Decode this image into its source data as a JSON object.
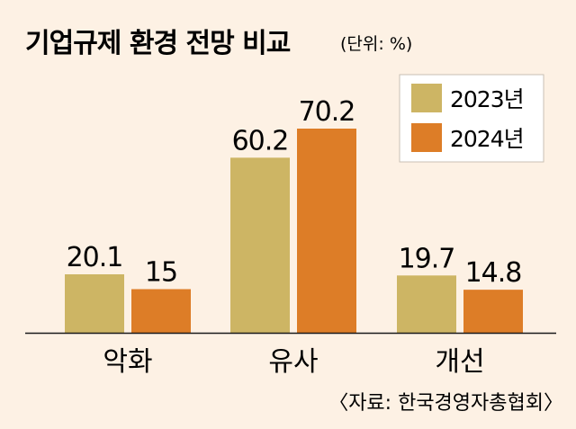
{
  "colors": {
    "background": "#fdf1e4",
    "series_2023": "#cdb564",
    "series_2024": "#dd7d27",
    "axis": "#1a1a1a"
  },
  "chart_data": {
    "type": "bar",
    "title": "기업규제 환경 전망 비교",
    "unit": "(단위: %)",
    "categories": [
      "악화",
      "유사",
      "개선"
    ],
    "series": [
      {
        "name": "2023년",
        "color": "#cdb564",
        "values": [
          20.1,
          60.2,
          19.7
        ],
        "labels": [
          "20.1",
          "60.2",
          "19.7"
        ]
      },
      {
        "name": "2024년",
        "color": "#dd7d27",
        "values": [
          15,
          70.2,
          14.8
        ],
        "labels": [
          "15",
          "70.2",
          "14.8"
        ]
      }
    ],
    "ylim": [
      0,
      70.2
    ],
    "grid": false,
    "legend": "top-right",
    "source": "〈자료: 한국경영자총협회〉"
  }
}
